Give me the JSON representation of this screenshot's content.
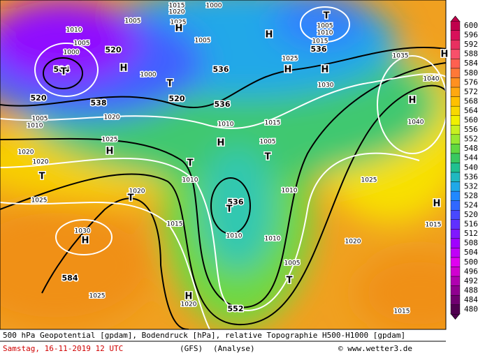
{
  "map": {
    "geopotential_labels": [
      "504",
      "520",
      "520",
      "520",
      "536",
      "536",
      "538",
      "536",
      "536",
      "552",
      "584"
    ],
    "pressure_labels": [
      "1005",
      "1010",
      "1000",
      "1015",
      "1020",
      "1025",
      "1005",
      "1005",
      "1000",
      "1005",
      "1010",
      "1015",
      "1025",
      "1035",
      "1040",
      "1040",
      "1030",
      "1020",
      "1010",
      "1005",
      "1025",
      "1020",
      "1020",
      "1010",
      "1015",
      "1005",
      "1010",
      "1020",
      "1010",
      "1025",
      "1025",
      "1030",
      "1015",
      "1010",
      "1010",
      "1015",
      "1020",
      "1005",
      "1025",
      "1020",
      "1015",
      "1000"
    ],
    "centers": [
      "H",
      "H",
      "T",
      "T",
      "H",
      "T",
      "H",
      "H",
      "H",
      "H",
      "H",
      "T",
      "H",
      "T",
      "T",
      "T",
      "T",
      "H",
      "H",
      "H",
      "T"
    ]
  },
  "colorbar": {
    "values": [
      600,
      596,
      592,
      588,
      584,
      580,
      576,
      572,
      568,
      564,
      560,
      556,
      552,
      548,
      544,
      540,
      536,
      532,
      528,
      524,
      520,
      516,
      512,
      508,
      504,
      500,
      496,
      492,
      488,
      484,
      480
    ],
    "colors": [
      "#c0004c",
      "#d8105a",
      "#e83060",
      "#f8506a",
      "#ff6050",
      "#ff7838",
      "#ff9020",
      "#ffa810",
      "#ffc000",
      "#f8d800",
      "#f0f000",
      "#c8f020",
      "#98e830",
      "#60d840",
      "#38c860",
      "#20c090",
      "#20b8c0",
      "#20a8e8",
      "#2088ff",
      "#3068ff",
      "#4848ff",
      "#6030ff",
      "#8018ff",
      "#a000ff",
      "#c000f8",
      "#e000f0",
      "#d000d0",
      "#b000b0",
      "#900090",
      "#700070",
      "#500050"
    ]
  },
  "footer": {
    "description": "500 hPa Geopotential [gpdam], Bodendruck [hPa], relative Topographie H500-H1000 [gpdam]",
    "date": "Samstag, 16-11-2019  12 UTC",
    "model": "(GFS)",
    "run": "(Analyse)",
    "copyright": "© www.wetter3.de"
  }
}
